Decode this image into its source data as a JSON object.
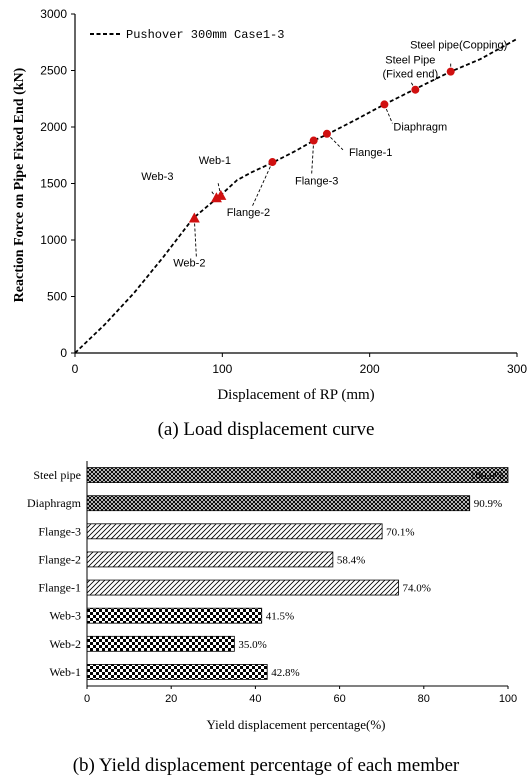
{
  "chart_data": [
    {
      "type": "line",
      "xlabel": "Displacement of RP (mm)",
      "ylabel": "Reaction Force on Pipe Fixed End (kN)",
      "xlim": [
        0,
        300
      ],
      "ylim": [
        0,
        3000
      ],
      "x_ticks": [
        "0",
        "100",
        "200",
        "300"
      ],
      "y_ticks": [
        "0",
        "500",
        "1000",
        "1500",
        "2000",
        "2500",
        "3000"
      ],
      "grid": false,
      "legend": "top-left",
      "series": [
        {
          "name": "Pushover 300mm Case1-3",
          "x": [
            0,
            20,
            40,
            60,
            80,
            90,
            97,
            100,
            110,
            120,
            135,
            150,
            162,
            172,
            190,
            210,
            230,
            255,
            275,
            300
          ],
          "y": [
            0,
            250,
            530,
            850,
            1190,
            1300,
            1375,
            1410,
            1530,
            1600,
            1690,
            1790,
            1880,
            1940,
            2060,
            2200,
            2330,
            2490,
            2600,
            2780
          ]
        }
      ],
      "markers": [
        {
          "label": "Web-2",
          "shape": "triangle",
          "x": 81,
          "y": 1190
        },
        {
          "label": "Web-3",
          "shape": "triangle",
          "x": 96,
          "y": 1370
        },
        {
          "label": "Web-1",
          "shape": "triangle",
          "x": 99,
          "y": 1390
        },
        {
          "label": "Flange-2",
          "shape": "circle",
          "x": 134,
          "y": 1690
        },
        {
          "label": "Flange-3",
          "shape": "circle",
          "x": 162,
          "y": 1880
        },
        {
          "label": "Flange-1",
          "shape": "circle",
          "x": 171,
          "y": 1940
        },
        {
          "label": "Diaphragm",
          "shape": "circle",
          "x": 210,
          "y": 2200
        },
        {
          "label": "Steel Pipe\n(Fixed end)",
          "shape": "circle",
          "x": 231,
          "y": 2330
        },
        {
          "label": "Steel pipe(Copping)",
          "shape": "circle",
          "x": 255,
          "y": 2490
        }
      ]
    },
    {
      "type": "bar",
      "orientation": "horizontal",
      "xlabel": "Yield displacement percentage(%)",
      "xlim": [
        0,
        100
      ],
      "x_ticks": [
        "0",
        "20",
        "40",
        "60",
        "80",
        "100"
      ],
      "categories": [
        "Steel pipe",
        "Diaphragm",
        "Flange-3",
        "Flange-2",
        "Flange-1",
        "Web-3",
        "Web-2",
        "Web-1"
      ],
      "values": [
        100.0,
        90.9,
        70.1,
        58.4,
        74.0,
        41.5,
        35.0,
        42.8
      ],
      "value_labels": [
        "100.0%",
        "90.9%",
        "70.1%",
        "58.4%",
        "74.0%",
        "41.5%",
        "35.0%",
        "42.8%"
      ],
      "patterns": [
        "dense-cross",
        "dense-cross",
        "diagonal",
        "diagonal",
        "diagonal",
        "checker",
        "checker",
        "checker"
      ]
    }
  ],
  "captions": {
    "a": "(a) Load displacement curve",
    "b": "(b) Yield displacement percentage of each member"
  },
  "colors": {
    "line": "#000000",
    "marker": "#d01010"
  }
}
